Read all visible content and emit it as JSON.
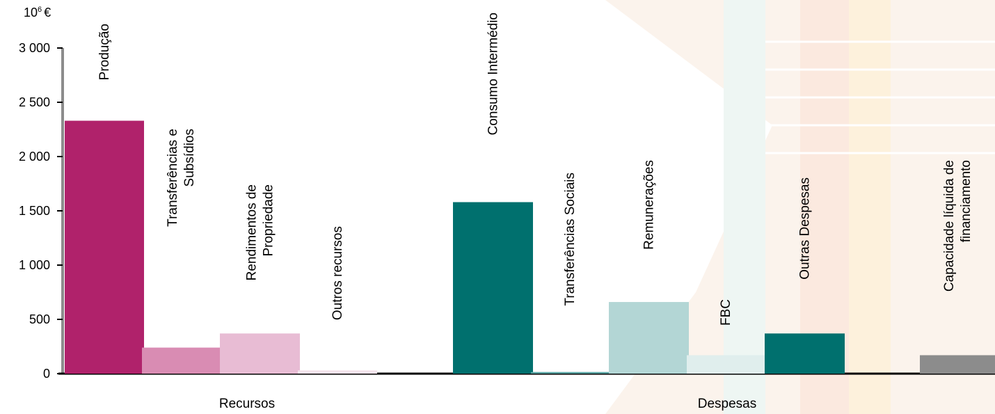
{
  "chart_data": {
    "type": "bar",
    "unit_label": "10",
    "unit_exponent": "6",
    "unit_currency": "€",
    "ylim": [
      0,
      3000
    ],
    "y_ticks": [
      "0",
      "500",
      "1 000",
      "1 500",
      "2 000",
      "2 500",
      "3 000"
    ],
    "y_tick_values": [
      0,
      500,
      1000,
      1500,
      2000,
      2500,
      3000
    ],
    "groups": [
      "Recursos",
      "Despesas"
    ],
    "bars": [
      {
        "label_lines": [
          "Produção"
        ],
        "value": 2330,
        "color": "#b0226b",
        "group": "Recursos"
      },
      {
        "label_lines": [
          "Transferências e",
          "Subsídios"
        ],
        "value": 240,
        "color": "#d98cb3",
        "group": "Recursos"
      },
      {
        "label_lines": [
          "Rendimentos de",
          "Propriedade"
        ],
        "value": 370,
        "color": "#e8bcd4",
        "group": "Recursos"
      },
      {
        "label_lines": [
          "Outros recursos"
        ],
        "value": 30,
        "color": "#f5e3ec",
        "group": "Recursos"
      },
      {
        "label_lines": [
          "Consumo Intermédio"
        ],
        "value": 1580,
        "color": "#00706e",
        "group": "Despesas"
      },
      {
        "label_lines": [
          "Transferências Sociais"
        ],
        "value": 15,
        "color": "#5aa6a4",
        "group": "Despesas"
      },
      {
        "label_lines": [
          "Remunerações"
        ],
        "value": 660,
        "color": "#b3d6d5",
        "group": "Despesas"
      },
      {
        "label_lines": [
          "FBC"
        ],
        "value": 170,
        "color": "#e0eeed",
        "group": "Despesas"
      },
      {
        "label_lines": [
          "Outras Despesas"
        ],
        "value": 370,
        "color": "#00706e",
        "group": "Despesas"
      },
      {
        "label_lines": [
          "Capacidade líquida  de",
          "financiamento"
        ],
        "value": 170,
        "color": "#8c8c8c",
        "group": "Despesas"
      }
    ]
  }
}
